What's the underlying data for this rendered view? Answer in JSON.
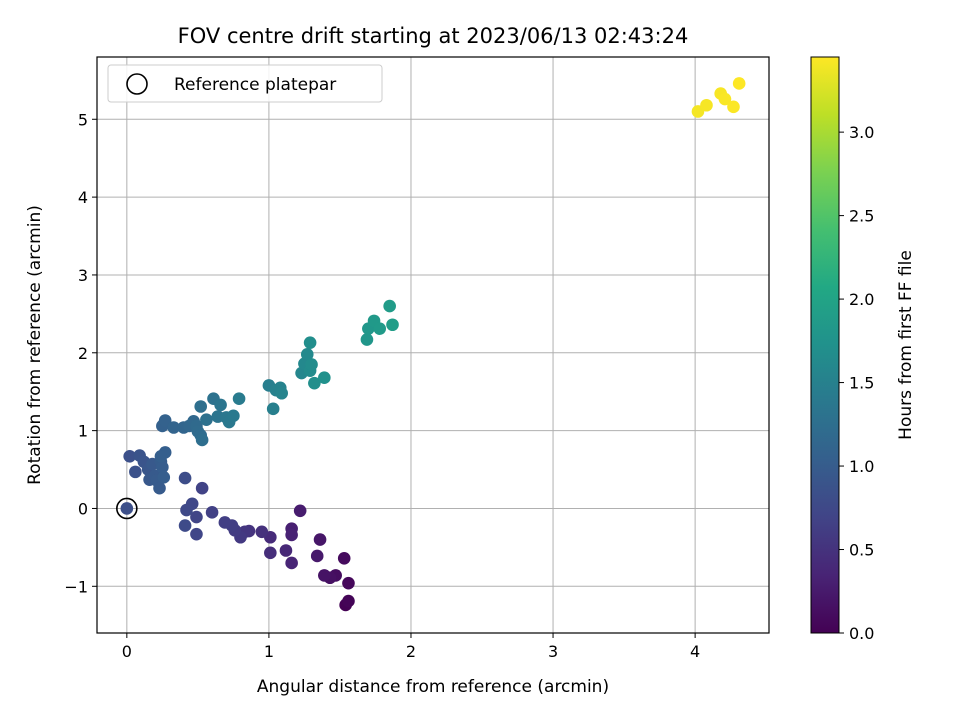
{
  "chart_data": {
    "type": "scatter",
    "title": "FOV centre drift starting at 2023/06/13 02:43:24",
    "xlabel": "Angular distance from reference (arcmin)",
    "ylabel": "Rotation from reference (arcmin)",
    "xlim": [
      -0.21,
      4.52
    ],
    "ylim": [
      -1.6,
      5.8
    ],
    "xticks": [
      "0",
      "1",
      "2",
      "3",
      "4"
    ],
    "yticks": [
      "−1",
      "0",
      "1",
      "2",
      "3",
      "4",
      "5"
    ],
    "grid": true,
    "legend": {
      "location": "upper-left",
      "entries": [
        "Reference platepar"
      ]
    },
    "reference_point": {
      "x": 0,
      "y": 0
    },
    "colorbar": {
      "label": "Hours from first FF file",
      "colormap": "viridis",
      "range": [
        0,
        3.45
      ],
      "ticks": [
        "0.0",
        "0.5",
        "1.0",
        "1.5",
        "2.0",
        "2.5",
        "3.0"
      ]
    },
    "points": [
      {
        "x": 1.54,
        "y": -1.24,
        "c": 0.0
      },
      {
        "x": 1.56,
        "y": -1.19,
        "c": 0.03
      },
      {
        "x": 1.56,
        "y": -0.96,
        "c": 0.06
      },
      {
        "x": 1.53,
        "y": -0.64,
        "c": 0.09
      },
      {
        "x": 1.47,
        "y": -0.86,
        "c": 0.12
      },
      {
        "x": 1.43,
        "y": -0.89,
        "c": 0.15
      },
      {
        "x": 1.39,
        "y": -0.86,
        "c": 0.18
      },
      {
        "x": 1.36,
        "y": -0.4,
        "c": 0.21
      },
      {
        "x": 1.34,
        "y": -0.61,
        "c": 0.24
      },
      {
        "x": 1.22,
        "y": -0.03,
        "c": 0.27
      },
      {
        "x": 1.16,
        "y": -0.26,
        "c": 0.3
      },
      {
        "x": 1.16,
        "y": -0.34,
        "c": 0.33
      },
      {
        "x": 1.16,
        "y": -0.7,
        "c": 0.36
      },
      {
        "x": 1.12,
        "y": -0.54,
        "c": 0.39
      },
      {
        "x": 1.01,
        "y": -0.37,
        "c": 0.42
      },
      {
        "x": 1.01,
        "y": -0.57,
        "c": 0.45
      },
      {
        "x": 0.95,
        "y": -0.3,
        "c": 0.48
      },
      {
        "x": 0.86,
        "y": -0.29,
        "c": 0.51
      },
      {
        "x": 0.83,
        "y": -0.3,
        "c": 0.54
      },
      {
        "x": 0.8,
        "y": -0.37,
        "c": 0.57
      },
      {
        "x": 0.76,
        "y": -0.28,
        "c": 0.6
      },
      {
        "x": 0.74,
        "y": -0.22,
        "c": 0.62
      },
      {
        "x": 0.69,
        "y": -0.18,
        "c": 0.64
      },
      {
        "x": 0.6,
        "y": -0.05,
        "c": 0.66
      },
      {
        "x": 0.53,
        "y": 0.26,
        "c": 0.68
      },
      {
        "x": 0.49,
        "y": -0.11,
        "c": 0.7
      },
      {
        "x": 0.49,
        "y": -0.33,
        "c": 0.72
      },
      {
        "x": 0.46,
        "y": 0.06,
        "c": 0.74
      },
      {
        "x": 0.42,
        "y": -0.02,
        "c": 0.76
      },
      {
        "x": 0.41,
        "y": -0.22,
        "c": 0.78
      },
      {
        "x": 0.41,
        "y": 0.39,
        "c": 0.8
      },
      {
        "x": 0.02,
        "y": 0.67,
        "c": 0.84
      },
      {
        "x": 0.06,
        "y": 0.47,
        "c": 0.86
      },
      {
        "x": 0.09,
        "y": 0.68,
        "c": 0.88
      },
      {
        "x": 0.12,
        "y": 0.6,
        "c": 0.9
      },
      {
        "x": 0.15,
        "y": 0.5,
        "c": 0.92
      },
      {
        "x": 0.16,
        "y": 0.37,
        "c": 0.94
      },
      {
        "x": 0.18,
        "y": 0.57,
        "c": 0.96
      },
      {
        "x": 0.2,
        "y": 0.42,
        "c": 0.97
      },
      {
        "x": 0.21,
        "y": 0.36,
        "c": 0.98
      },
      {
        "x": 0.23,
        "y": 0.26,
        "c": 0.99
      },
      {
        "x": 0.24,
        "y": 0.6,
        "c": 1.0
      },
      {
        "x": 0.25,
        "y": 0.53,
        "c": 1.01
      },
      {
        "x": 0.26,
        "y": 0.4,
        "c": 1.02
      },
      {
        "x": 0.27,
        "y": 0.72,
        "c": 1.03
      },
      {
        "x": 0.24,
        "y": 0.67,
        "c": 1.04
      },
      {
        "x": 0.25,
        "y": 1.06,
        "c": 1.06
      },
      {
        "x": 0.27,
        "y": 1.13,
        "c": 1.08
      },
      {
        "x": 0.33,
        "y": 1.04,
        "c": 1.1
      },
      {
        "x": 0.4,
        "y": 1.04,
        "c": 1.12
      },
      {
        "x": 0.44,
        "y": 1.06,
        "c": 1.14
      },
      {
        "x": 0.47,
        "y": 1.12,
        "c": 1.16
      },
      {
        "x": 0.49,
        "y": 1.06,
        "c": 1.18
      },
      {
        "x": 0.5,
        "y": 0.99,
        "c": 1.2
      },
      {
        "x": 0.52,
        "y": 0.94,
        "c": 1.22
      },
      {
        "x": 0.53,
        "y": 0.88,
        "c": 1.24
      },
      {
        "x": 0.52,
        "y": 1.31,
        "c": 1.26
      },
      {
        "x": 0.56,
        "y": 1.14,
        "c": 1.28
      },
      {
        "x": 0.61,
        "y": 1.41,
        "c": 1.3
      },
      {
        "x": 0.64,
        "y": 1.18,
        "c": 1.32
      },
      {
        "x": 0.66,
        "y": 1.33,
        "c": 1.34
      },
      {
        "x": 0.7,
        "y": 1.17,
        "c": 1.36
      },
      {
        "x": 0.72,
        "y": 1.11,
        "c": 1.38
      },
      {
        "x": 0.75,
        "y": 1.19,
        "c": 1.4
      },
      {
        "x": 0.79,
        "y": 1.41,
        "c": 1.42
      },
      {
        "x": 1.0,
        "y": 1.58,
        "c": 1.46
      },
      {
        "x": 1.03,
        "y": 1.28,
        "c": 1.48
      },
      {
        "x": 1.05,
        "y": 1.52,
        "c": 1.5
      },
      {
        "x": 1.08,
        "y": 1.55,
        "c": 1.52
      },
      {
        "x": 1.09,
        "y": 1.48,
        "c": 1.54
      },
      {
        "x": 1.23,
        "y": 1.74,
        "c": 1.58
      },
      {
        "x": 1.25,
        "y": 1.86,
        "c": 1.6
      },
      {
        "x": 1.27,
        "y": 1.98,
        "c": 1.62
      },
      {
        "x": 1.29,
        "y": 1.77,
        "c": 1.64
      },
      {
        "x": 1.3,
        "y": 1.85,
        "c": 1.66
      },
      {
        "x": 1.29,
        "y": 2.13,
        "c": 1.68
      },
      {
        "x": 1.32,
        "y": 1.61,
        "c": 1.7
      },
      {
        "x": 1.39,
        "y": 1.68,
        "c": 1.72
      },
      {
        "x": 1.69,
        "y": 2.17,
        "c": 1.8
      },
      {
        "x": 1.7,
        "y": 2.31,
        "c": 1.82
      },
      {
        "x": 1.74,
        "y": 2.41,
        "c": 1.84
      },
      {
        "x": 1.78,
        "y": 2.31,
        "c": 1.86
      },
      {
        "x": 1.85,
        "y": 2.6,
        "c": 1.88
      },
      {
        "x": 1.87,
        "y": 2.36,
        "c": 1.9
      },
      {
        "x": 4.02,
        "y": 5.1,
        "c": 3.4
      },
      {
        "x": 4.08,
        "y": 5.18,
        "c": 3.41
      },
      {
        "x": 4.18,
        "y": 5.33,
        "c": 3.42
      },
      {
        "x": 4.21,
        "y": 5.26,
        "c": 3.43
      },
      {
        "x": 4.27,
        "y": 5.16,
        "c": 3.44
      },
      {
        "x": 4.31,
        "y": 5.46,
        "c": 3.45
      }
    ]
  }
}
